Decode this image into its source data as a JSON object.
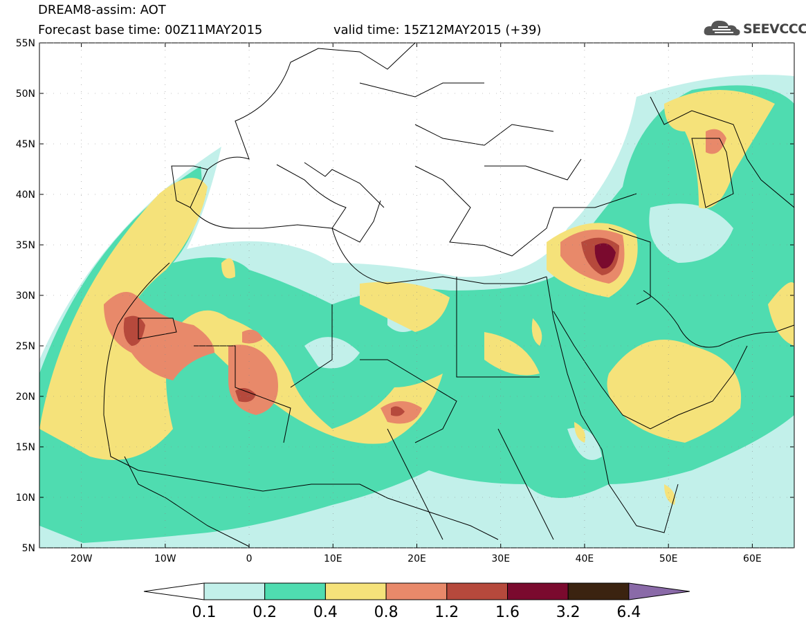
{
  "header": {
    "line1": "DREAM8-assim: AOT",
    "base_time": "Forecast base time: 00Z11MAY2015",
    "valid_time": "valid time: 15Z12MAY2015 (+39)"
  },
  "logo": {
    "icon": "cloud-icon",
    "text": "SEEVCCC"
  },
  "map": {
    "lat_labels": [
      "55N",
      "50N",
      "45N",
      "40N",
      "35N",
      "30N",
      "25N",
      "20N",
      "15N",
      "10N",
      "5N"
    ],
    "lon_labels": [
      "20W",
      "10W",
      "0",
      "10E",
      "20E",
      "30E",
      "40E",
      "50E",
      "60E"
    ],
    "lon_range": [
      -25,
      65
    ],
    "lat_range": [
      5,
      55
    ]
  },
  "colorbar": {
    "colors": [
      "#c2f0ea",
      "#4fdcb0",
      "#f5e27a",
      "#e8896a",
      "#b6493c",
      "#7a0a2e",
      "#3b2310",
      "#8a6aa8"
    ],
    "labels": [
      "0.1",
      "0.2",
      "0.4",
      "0.8",
      "1.2",
      "1.6",
      "3.2",
      "6.4"
    ]
  }
}
